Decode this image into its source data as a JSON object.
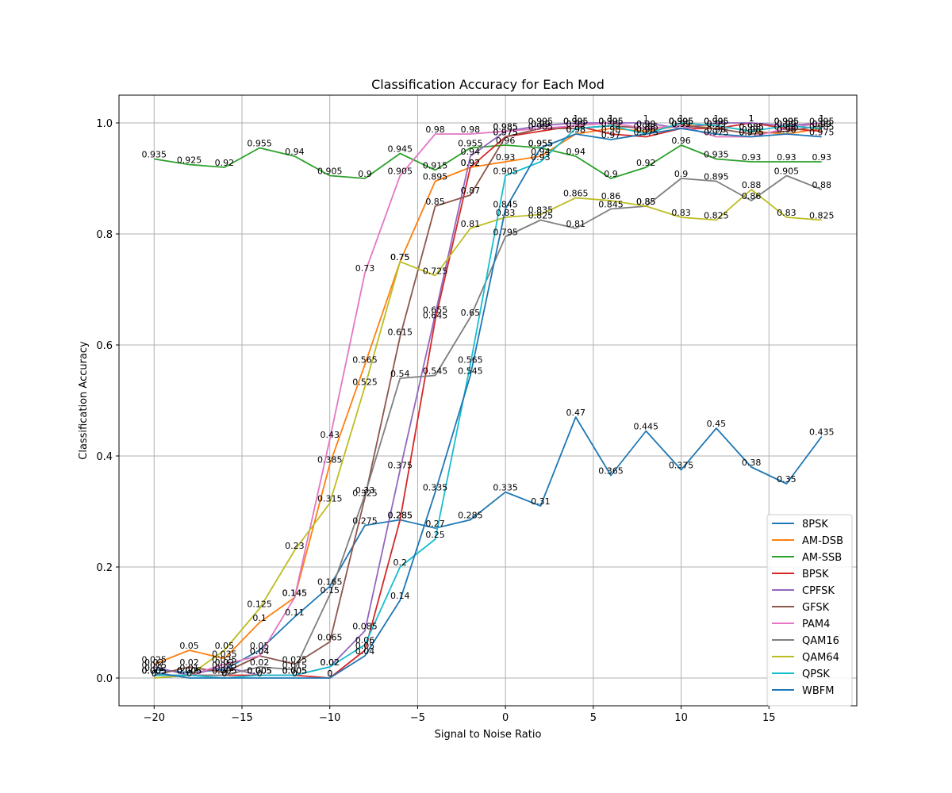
{
  "chart_data": {
    "type": "line",
    "title": "Classification Accuracy for Each Mod",
    "xlabel": "Signal to Noise Ratio",
    "ylabel": "Classification Accuracy",
    "xlim": [
      -22,
      20
    ],
    "ylim": [
      -0.05,
      1.05
    ],
    "xticks": [
      -20,
      -15,
      -10,
      -5,
      0,
      5,
      10,
      15
    ],
    "xtick_labels": [
      "−20",
      "−15",
      "−10",
      "−5",
      "0",
      "5",
      "10",
      "15"
    ],
    "yticks": [
      0.0,
      0.2,
      0.4,
      0.6,
      0.8,
      1.0
    ],
    "ytick_labels": [
      "0.0",
      "0.2",
      "0.4",
      "0.6",
      "0.8",
      "1.0"
    ],
    "grid": true,
    "legend_position": "lower-right",
    "x": [
      -20,
      -18,
      -16,
      -14,
      -12,
      -10,
      -8,
      -6,
      -4,
      -2,
      0,
      2,
      4,
      6,
      8,
      10,
      12,
      14,
      16,
      18
    ],
    "series": [
      {
        "name": "8PSK",
        "color": "#1f77b4",
        "values": [
          0.015,
          0.01,
          0.015,
          0.05,
          0.11,
          0.165,
          0.275,
          0.285,
          0.27,
          0.285,
          0.335,
          0.31,
          0.47,
          0.365,
          0.445,
          0.375,
          0.45,
          0.38,
          0.35,
          0.435
        ]
      },
      {
        "name": "AM-DSB",
        "color": "#ff7f0e",
        "values": [
          0.025,
          0.05,
          0.035,
          0.1,
          0.145,
          0.385,
          0.565,
          0.75,
          0.895,
          0.92,
          0.93,
          0.94,
          0.98,
          0.99,
          0.985,
          0.995,
          0.995,
          0.985,
          0.98,
          0.99
        ]
      },
      {
        "name": "AM-SSB",
        "color": "#2ca02c",
        "values": [
          0.935,
          0.925,
          0.92,
          0.955,
          0.94,
          0.905,
          0.9,
          0.945,
          0.915,
          0.955,
          0.96,
          0.955,
          0.94,
          0.9,
          0.92,
          0.96,
          0.935,
          0.93,
          0.93,
          0.93
        ]
      },
      {
        "name": "BPSK",
        "color": "#d62728",
        "values": [
          0.005,
          0.005,
          0.005,
          0.005,
          0.005,
          0.0,
          0.05,
          0.285,
          0.645,
          0.92,
          0.975,
          0.985,
          0.995,
          0.98,
          0.975,
          0.99,
          0.99,
          1.0,
          0.99,
          0.985
        ]
      },
      {
        "name": "CPFSK",
        "color": "#9467bd",
        "values": [
          0.02,
          0.005,
          0.02,
          0.005,
          0.005,
          0.02,
          0.085,
          0.375,
          0.655,
          0.94,
          0.985,
          0.995,
          1.0,
          1.0,
          1.0,
          0.99,
          1.0,
          1.0,
          0.995,
          1.0
        ]
      },
      {
        "name": "GFSK",
        "color": "#8c564b",
        "values": [
          0.005,
          0.02,
          0.01,
          0.04,
          0.025,
          0.065,
          0.325,
          0.615,
          0.85,
          0.87,
          0.975,
          0.99,
          0.99,
          0.995,
          0.99,
          0.995,
          0.99,
          0.98,
          0.985,
          0.995
        ]
      },
      {
        "name": "PAM4",
        "color": "#e377c2",
        "values": [
          0.005,
          0.005,
          0.025,
          0.04,
          0.145,
          0.43,
          0.73,
          0.905,
          0.98,
          0.98,
          0.985,
          0.99,
          0.995,
          1.0,
          0.99,
          0.995,
          0.975,
          0.975,
          0.99,
          1.0
        ]
      },
      {
        "name": "QAM16",
        "color": "#7f7f7f",
        "values": [
          0.0,
          0.005,
          0.005,
          0.02,
          0.015,
          0.15,
          0.33,
          0.54,
          0.545,
          0.65,
          0.795,
          0.825,
          0.81,
          0.845,
          0.85,
          0.9,
          0.895,
          0.86,
          0.905,
          0.88
        ]
      },
      {
        "name": "QAM64",
        "color": "#bcbd22",
        "values": [
          0.0,
          0.005,
          0.05,
          0.125,
          0.23,
          0.315,
          0.525,
          0.75,
          0.725,
          0.81,
          0.83,
          0.835,
          0.865,
          0.86,
          0.85,
          0.83,
          0.825,
          0.88,
          0.83,
          0.825
        ]
      },
      {
        "name": "QPSK",
        "color": "#17becf",
        "values": [
          0.005,
          0.005,
          0.0,
          0.005,
          0.005,
          0.02,
          0.06,
          0.2,
          0.25,
          0.565,
          0.905,
          0.93,
          0.99,
          0.995,
          0.98,
          1.0,
          0.995,
          0.985,
          0.995,
          0.99
        ]
      },
      {
        "name": "WBFM",
        "color": "#1f77b4",
        "values": [
          0.01,
          0.0,
          0.0,
          0.0,
          0.0,
          0.0,
          0.04,
          0.14,
          0.335,
          0.545,
          0.845,
          0.955,
          0.98,
          0.97,
          0.98,
          0.99,
          0.98,
          0.975,
          0.98,
          0.975
        ]
      }
    ]
  }
}
